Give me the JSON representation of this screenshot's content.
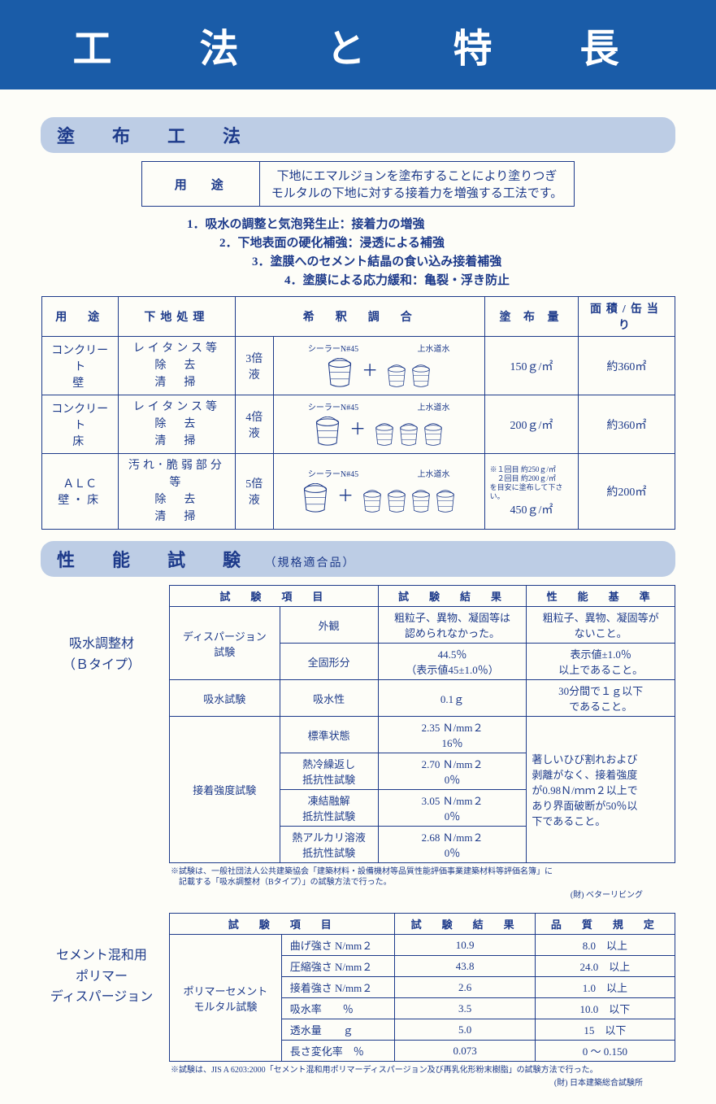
{
  "colors": {
    "primary": "#1d3a8a",
    "header_bg": "#1a5ca8",
    "section_bg": "#bdcde5",
    "page_bg": "#fdfdf8"
  },
  "main_title": "工　法　と　特　長",
  "section1": {
    "title": "塗　布　工　法",
    "usage_label": "用途",
    "usage_desc1": "下地にエマルジョンを塗布することにより塗りつぎ",
    "usage_desc2": "モルタルの下地に対する接着力を増強する工法です。",
    "points": [
      {
        "indent": 180,
        "text": "1．吸水の調整と気泡発生止：接着力の増強"
      },
      {
        "indent": 220,
        "text": "2．下地表面の硬化補強：浸透による補強"
      },
      {
        "indent": 260,
        "text": "3．塗膜へのセメント結晶の食い込み接着補強"
      },
      {
        "indent": 300,
        "text": "4．塗膜による応力緩和：亀裂・浮き防止"
      }
    ],
    "table": {
      "headers": {
        "use": "用　途",
        "prep": "下地処理",
        "dilution": "希　釈　調　合",
        "amount": "塗 布 量",
        "area": "面積/缶当り"
      },
      "sealer_label": "シーラーN#45",
      "water_label": "上水道水",
      "rows": [
        {
          "use1": "コンクリート",
          "use2": "壁",
          "prep": "レイタンス等\n除　去\n清　掃",
          "ratio": "3倍液",
          "buckets": 2,
          "amount": "150ｇ/㎡",
          "area": "約360㎡",
          "note": ""
        },
        {
          "use1": "コンクリート",
          "use2": "床",
          "prep": "レイタンス等\n除　去\n清　掃",
          "ratio": "4倍液",
          "buckets": 3,
          "amount": "200ｇ/㎡",
          "area": "約360㎡",
          "note": ""
        },
        {
          "use1": "ＡＬＣ",
          "use2": "壁・床",
          "prep": "汚れ･脆弱部分等\n除　去\n清　掃",
          "ratio": "5倍液",
          "buckets": 4,
          "amount": "450ｇ/㎡",
          "area": "約200㎡",
          "note": "※１回目 約250ｇ/㎡\n　２回目 約200ｇ/㎡\nを目安に塗布して下さい。"
        }
      ]
    }
  },
  "section2": {
    "title": "性　能　試　験",
    "subtitle": "（規格適合品）",
    "test_a": {
      "label1": "吸水調整材",
      "label2": "（Ｂタイプ）",
      "headers": {
        "item": "試　験　項　目",
        "result": "試　験　結　果",
        "std": "性　能　基　準"
      },
      "groups": [
        {
          "name": "ディスパージョン\n試験",
          "rowspan": 2,
          "rows": [
            {
              "sub": "外観",
              "result": "粗粒子、異物、凝固等は\n認められなかった。",
              "std": "粗粒子、異物、凝固等が\nないこと。"
            },
            {
              "sub": "全固形分",
              "result": "44.5％\n（表示値45±1.0％）",
              "std": "表示値±1.0％\n以上であること。"
            }
          ]
        },
        {
          "name": "吸水試験",
          "rowspan": 1,
          "rows": [
            {
              "sub": "吸水性",
              "result": "0.1ｇ",
              "std": "30分間で１ｇ以下\nであること。"
            }
          ]
        },
        {
          "name": "接着強度試験",
          "rowspan": 4,
          "std_merged": "著しいひび割れおよび\n剥離がなく、接着強度\nが0.98Ｎ/ｍｍ２以上で\nあり界面破断が50％以\n下であること。",
          "rows": [
            {
              "sub": "標準状態",
              "result": "2.35 Ｎ/mm２\n16％"
            },
            {
              "sub": "熱冷繰返し\n抵抗性試験",
              "result": "2.70 Ｎ/mm２\n0％"
            },
            {
              "sub": "凍結融解\n抵抗性試験",
              "result": "3.05 Ｎ/mm２\n0％"
            },
            {
              "sub": "熱アルカリ溶液\n抵抗性試験",
              "result": "2.68 Ｎ/mm２\n0％"
            }
          ]
        }
      ],
      "footnote1": "※試験は、一般社団法人公共建築協会「建築材料・設備機材等品質性能評価事業建築材料等評価名簿」に",
      "footnote2": "　記載する「吸水調整材（Bタイプ）」の試験方法で行った。",
      "footnote_right": "(財)  ベターリビング"
    },
    "test_b": {
      "label1": "セメント混和用",
      "label2": "ポリマー",
      "label3": "ディスパージョン",
      "headers": {
        "item": "試　験　項　目",
        "result": "試　験　結　果",
        "std": "品　質　規　定"
      },
      "group_name": "ポリマーセメント\nモルタル試験",
      "rows": [
        {
          "sub": "曲げ強さ N/mm２",
          "result": "10.9",
          "std": "8.0　以上"
        },
        {
          "sub": "圧縮強さ N/mm２",
          "result": "43.8",
          "std": "24.0　以上"
        },
        {
          "sub": "接着強さ N/mm２",
          "result": "2.6",
          "std": "1.0　以上"
        },
        {
          "sub": "吸水率　　％",
          "result": "3.5",
          "std": "10.0　以下"
        },
        {
          "sub": "透水量　　ｇ",
          "result": "5.0",
          "std": "15　以下"
        },
        {
          "sub": "長さ変化率　％",
          "result": "0.073",
          "std": "0 ～ 0.150"
        }
      ],
      "footnote1": "※試験は、JIS A 6203:2000「セメント混和用ポリマーディスパージョン及び再乳化形粉末樹脂」の試験方法で行った。",
      "footnote_right": "(財)  日本建築総合試験所"
    }
  }
}
